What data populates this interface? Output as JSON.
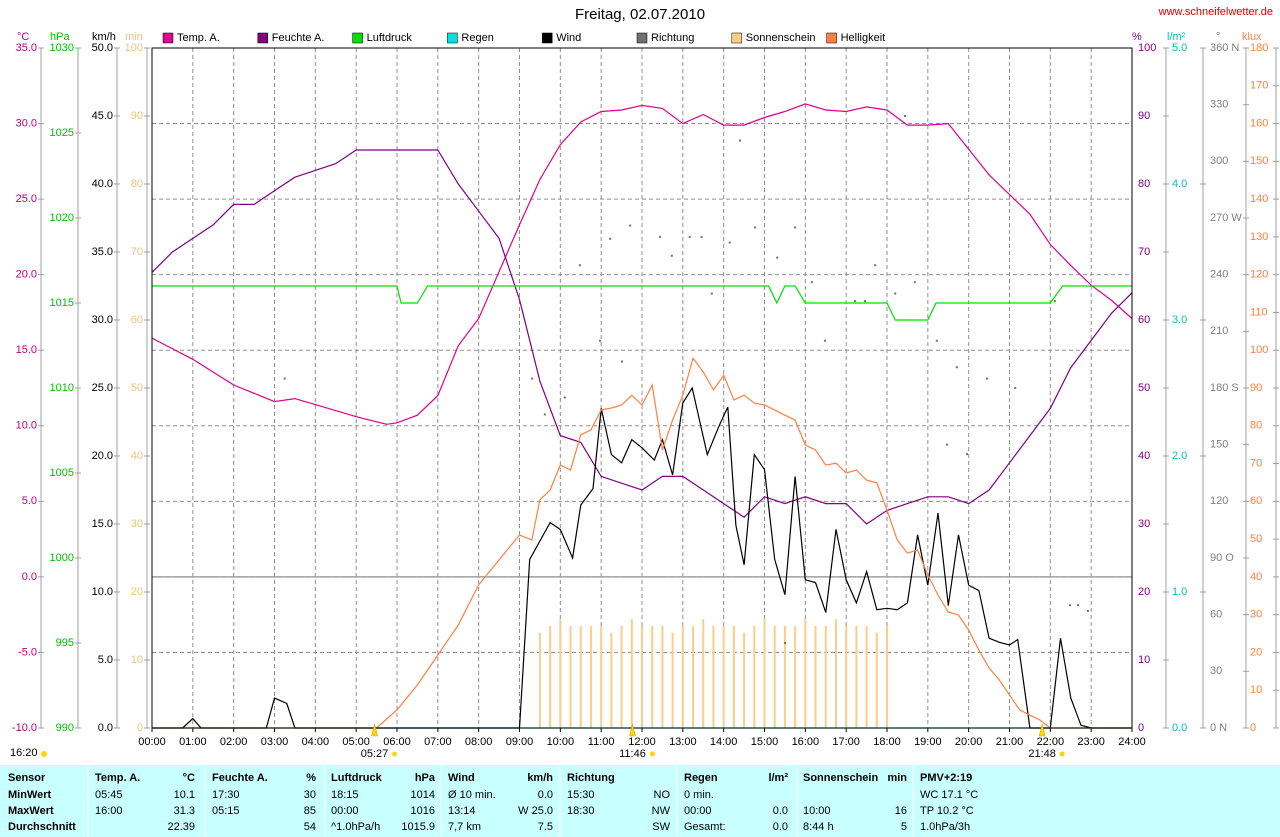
{
  "header": {
    "url": "www.schneifelwetter.de",
    "time": "16:20"
  },
  "chart_data": {
    "type": "line",
    "title": "Freitag, 02.07.2010",
    "grid": true,
    "xlim": [
      0,
      24
    ],
    "xticks": [
      {
        "value": 0,
        "label": "00:00"
      },
      {
        "value": 1,
        "label": "01:00"
      },
      {
        "value": 2,
        "label": "02:00"
      },
      {
        "value": 3,
        "label": "03:00"
      },
      {
        "value": 4,
        "label": "04:00"
      },
      {
        "value": 5,
        "label": "05:00"
      },
      {
        "value": 6,
        "label": "06:00"
      },
      {
        "value": 7,
        "label": "07:00"
      },
      {
        "value": 8,
        "label": "08:00"
      },
      {
        "value": 9,
        "label": "09:00"
      },
      {
        "value": 10,
        "label": "10:00"
      },
      {
        "value": 11,
        "label": "11:00"
      },
      {
        "value": 12,
        "label": "12:00"
      },
      {
        "value": 13,
        "label": "13:00"
      },
      {
        "value": 14,
        "label": "14:00"
      },
      {
        "value": 15,
        "label": "15:00"
      },
      {
        "value": 16,
        "label": "16:00"
      },
      {
        "value": 17,
        "label": "17:00"
      },
      {
        "value": 18,
        "label": "18:00"
      },
      {
        "value": 19,
        "label": "19:00"
      },
      {
        "value": 20,
        "label": "20:00"
      },
      {
        "value": 21,
        "label": "21:00"
      },
      {
        "value": 22,
        "label": "22:00"
      },
      {
        "value": 23,
        "label": "23:00"
      },
      {
        "value": 24,
        "label": "24:00"
      }
    ],
    "axes": [
      {
        "unit": "°C",
        "side": "left",
        "color": "#c0007f",
        "ylim": [
          -10,
          35
        ],
        "yticks": [
          {
            "value": -10,
            "label": "-10.0"
          },
          {
            "value": -5,
            "label": "-5.0"
          },
          {
            "value": 0,
            "label": "0.0"
          },
          {
            "value": 5,
            "label": "5.0"
          },
          {
            "value": 10,
            "label": "10.0"
          },
          {
            "value": 15,
            "label": "15.0"
          },
          {
            "value": 20,
            "label": "20.0"
          },
          {
            "value": 25,
            "label": "25.0"
          },
          {
            "value": 30,
            "label": "30.0"
          },
          {
            "value": 35,
            "label": "35.0"
          }
        ]
      },
      {
        "unit": "hPa",
        "side": "left",
        "color": "#00c000",
        "ylim": [
          990,
          1030
        ],
        "yticks": [
          990,
          995,
          1000,
          1005,
          1010,
          1015,
          1020,
          1025,
          1030
        ]
      },
      {
        "unit": "km/h",
        "side": "left",
        "color": "#000000",
        "ylim": [
          0,
          50
        ],
        "yticks": [
          {
            "value": 0,
            "label": "0.0"
          },
          {
            "value": 5,
            "label": "5.0"
          },
          {
            "value": 10,
            "label": "10.0"
          },
          {
            "value": 15,
            "label": "15.0"
          },
          {
            "value": 20,
            "label": "20.0"
          },
          {
            "value": 25,
            "label": "25.0"
          },
          {
            "value": 30,
            "label": "30.0"
          },
          {
            "value": 35,
            "label": "35.0"
          },
          {
            "value": 40,
            "label": "40.0"
          },
          {
            "value": 45,
            "label": "45.0"
          },
          {
            "value": 50,
            "label": "50.0"
          }
        ]
      },
      {
        "unit": "min",
        "side": "left",
        "color": "#f0c080",
        "ylim": [
          0,
          100
        ],
        "yticks": [
          0,
          10,
          20,
          30,
          40,
          50,
          60,
          70,
          80,
          90,
          100
        ]
      },
      {
        "unit": "%",
        "side": "right",
        "color": "#800080",
        "ylim": [
          0,
          100
        ],
        "yticks": [
          0,
          10,
          20,
          30,
          40,
          50,
          60,
          70,
          80,
          90,
          100
        ]
      },
      {
        "unit": "l/m²",
        "side": "right",
        "color": "#00c0c0",
        "ylim": [
          0,
          5
        ],
        "yticks": [
          {
            "value": 0,
            "label": "0.0"
          },
          {
            "value": 1,
            "label": "1.0"
          },
          {
            "value": 2,
            "label": "2.0"
          },
          {
            "value": 3,
            "label": "3.0"
          },
          {
            "value": 4,
            "label": "4.0"
          },
          {
            "value": 5,
            "label": "5.0"
          }
        ]
      },
      {
        "unit": "°",
        "side": "right",
        "color": "#808080",
        "ylim": [
          0,
          360
        ],
        "yticks": [
          {
            "value": 0,
            "label": "0   N"
          },
          30,
          60,
          {
            "value": 90,
            "label": "90   O"
          },
          120,
          150,
          {
            "value": 180,
            "label": "180 S"
          },
          210,
          240,
          {
            "value": 270,
            "label": "270 W"
          },
          300,
          330,
          {
            "value": 360,
            "label": "360 N"
          }
        ]
      },
      {
        "unit": "klux",
        "side": "right",
        "color": "#ff8040",
        "ylim": [
          0,
          180
        ],
        "yticks": [
          0,
          10,
          20,
          30,
          40,
          50,
          60,
          70,
          80,
          90,
          100,
          110,
          120,
          130,
          140,
          150,
          160,
          170,
          180
        ]
      }
    ],
    "series": [
      {
        "name": "Temp. A.",
        "type": "line",
        "axis": "°C",
        "color": "#e0008c",
        "x": [
          0,
          1,
          2,
          3,
          3.5,
          4,
          5,
          5.75,
          6,
          6.5,
          7,
          7.5,
          8,
          8.5,
          9,
          9.5,
          10,
          10.5,
          11,
          11.5,
          12,
          12.5,
          13,
          13.5,
          14,
          14.5,
          15,
          15.5,
          16,
          16.5,
          17,
          17.5,
          18,
          18.5,
          19,
          19.5,
          20,
          20.5,
          21,
          21.5,
          22,
          22.5,
          23,
          23.5,
          24
        ],
        "values": [
          15.8,
          14.4,
          12.7,
          11.6,
          11.8,
          11.4,
          10.6,
          10.1,
          10.2,
          10.7,
          12.0,
          15.3,
          17.1,
          20.2,
          23.3,
          26.3,
          28.6,
          30.1,
          30.8,
          30.9,
          31.2,
          31.0,
          30.0,
          30.6,
          29.9,
          29.9,
          30.4,
          30.8,
          31.3,
          30.9,
          30.8,
          31.1,
          30.9,
          29.9,
          29.9,
          30.0,
          28.3,
          26.6,
          25.3,
          24.0,
          22.0,
          20.6,
          19.3,
          18.3,
          17.1
        ]
      },
      {
        "name": "Feuchte A.",
        "type": "line",
        "axis": "%",
        "color": "#800080",
        "x": [
          0,
          0.5,
          1,
          1.5,
          2,
          2.5,
          3,
          3.5,
          4,
          4.5,
          5,
          6,
          7,
          7.5,
          8,
          8.5,
          9,
          9.5,
          10,
          10.5,
          11,
          11.5,
          12,
          12.5,
          13,
          13.5,
          14,
          14.5,
          15,
          15.5,
          16,
          16.5,
          17,
          17.5,
          18,
          18.5,
          19,
          19.5,
          20,
          20.5,
          21,
          21.5,
          22,
          22.5,
          23,
          23.5,
          24
        ],
        "values": [
          67,
          70,
          72,
          74,
          77,
          77,
          79,
          81,
          82,
          83,
          85,
          85,
          85,
          80,
          76,
          72,
          63,
          51,
          43,
          42,
          37,
          36,
          35,
          37,
          37,
          35,
          33,
          31,
          34,
          33,
          34,
          33,
          33,
          30,
          32,
          33,
          34,
          34,
          33,
          35,
          39,
          43,
          47,
          53,
          57,
          61,
          64
        ]
      },
      {
        "name": "Luftdruck",
        "type": "line",
        "axis": "hPa",
        "color": "#00e000",
        "x": [
          0,
          6,
          6.1,
          6.5,
          6.75,
          15.1,
          15.3,
          15.5,
          15.75,
          16,
          18,
          18.2,
          19,
          19.2,
          22,
          22.3,
          24
        ],
        "values": [
          1016,
          1016,
          1015,
          1015,
          1016,
          1016,
          1015,
          1016,
          1016,
          1015,
          1015,
          1014,
          1014,
          1015,
          1015,
          1016,
          1016
        ]
      },
      {
        "name": "Regen",
        "type": "line",
        "axis": "l/m²",
        "color": "#00e0e0",
        "x": [
          0,
          24
        ],
        "values": [
          0,
          0
        ]
      },
      {
        "name": "Wind",
        "type": "line",
        "axis": "km/h",
        "color": "#000000",
        "x": [
          0,
          0.75,
          1,
          1.2,
          2.8,
          3,
          3.3,
          3.5,
          9,
          9.25,
          9.75,
          10,
          10.3,
          10.5,
          10.8,
          11,
          11.25,
          11.5,
          11.75,
          12,
          12.3,
          12.5,
          12.75,
          13,
          13.23,
          13.6,
          13.9,
          14.1,
          14.3,
          14.5,
          14.75,
          15,
          15.25,
          15.5,
          15.75,
          16,
          16.25,
          16.5,
          16.75,
          17,
          17.25,
          17.5,
          17.75,
          18,
          18.25,
          18.5,
          18.75,
          19,
          19.25,
          19.5,
          19.75,
          20,
          20.25,
          20.5,
          20.75,
          21,
          21.2,
          21.5,
          22,
          22.25,
          22.5,
          22.75,
          23,
          24
        ],
        "values": [
          0,
          0,
          0.7,
          0,
          0,
          2.2,
          1.8,
          0,
          0,
          12.4,
          15.1,
          14.6,
          12.5,
          16.4,
          17.6,
          23.5,
          20.1,
          19.5,
          21.2,
          20.6,
          19.7,
          21.2,
          18.6,
          23.9,
          25.0,
          20.1,
          22.3,
          23.6,
          14.9,
          12.0,
          20.1,
          19.0,
          12.4,
          9.8,
          18.5,
          10.9,
          10.7,
          8.5,
          14.6,
          10.9,
          9.2,
          11.5,
          8.7,
          8.8,
          8.7,
          9.2,
          14.2,
          10.5,
          15.8,
          9.0,
          14.2,
          10.5,
          10.1,
          6.6,
          6.3,
          6.1,
          6.5,
          0,
          0,
          6.6,
          2.2,
          0.2,
          0,
          0
        ]
      },
      {
        "name": "Richtung",
        "type": "dots",
        "axis": "°",
        "color": "#707070",
        "x": [
          3.25,
          9.31,
          9.62,
          10.11,
          10.48,
          10.97,
          11.22,
          11.51,
          11.71,
          12.44,
          12.73,
          13.17,
          13.46,
          13.71,
          14.15,
          14.4,
          14.77,
          15.31,
          15.5,
          15.75,
          16.16,
          16.48,
          17.22,
          17.46,
          17.71,
          18.2,
          18.44,
          18.68,
          19.22,
          19.47,
          19.71,
          19.96,
          20.45,
          21.14,
          22.11,
          22.48,
          22.68,
          22.92
        ],
        "values": [
          185,
          185,
          166,
          175,
          245,
          205,
          259,
          194,
          266,
          260,
          250,
          260,
          260,
          230,
          257,
          311,
          265,
          249,
          45,
          265,
          236,
          205,
          226,
          226,
          245,
          230,
          324,
          236,
          205,
          150,
          191,
          145,
          185,
          180,
          226,
          65,
          65,
          62
        ]
      },
      {
        "name": "Sonnenschein",
        "type": "bar",
        "axis": "min",
        "color": "#ffcc88",
        "x": [
          9.5,
          9.75,
          10,
          10.25,
          10.5,
          10.75,
          11,
          11.25,
          11.5,
          11.75,
          12,
          12.25,
          12.5,
          12.75,
          13,
          13.25,
          13.5,
          13.75,
          14,
          14.25,
          14.5,
          14.75,
          15,
          15.25,
          15.5,
          15.75,
          16,
          16.25,
          16.5,
          16.75,
          17,
          17.25,
          17.5,
          17.75,
          18
        ],
        "values": [
          14,
          15,
          16,
          15,
          15,
          15,
          15,
          14,
          15,
          16,
          15,
          15,
          15,
          14,
          15,
          15,
          16,
          15,
          15,
          15,
          14,
          15,
          16,
          15,
          15,
          15,
          16,
          15,
          15,
          16,
          15,
          15,
          15,
          14,
          15
        ]
      },
      {
        "name": "Helligkeit",
        "type": "line",
        "axis": "klux",
        "color": "#ff8040",
        "x": [
          0,
          5.5,
          6,
          6.5,
          7,
          7.5,
          8,
          8.5,
          9,
          9.3,
          9.5,
          9.75,
          10,
          10.25,
          10.5,
          10.75,
          11,
          11.25,
          11.5,
          11.75,
          12,
          12.25,
          12.5,
          12.75,
          13,
          13.25,
          13.5,
          13.75,
          14,
          14.25,
          14.5,
          14.75,
          15,
          15.5,
          15.75,
          16,
          16.25,
          16.5,
          16.75,
          17,
          17.25,
          17.5,
          17.75,
          18,
          18.25,
          18.5,
          18.75,
          19,
          19.25,
          19.5,
          19.75,
          20,
          20.25,
          20.5,
          20.75,
          21,
          21.25,
          21.5,
          21.75,
          22,
          24
        ],
        "values": [
          0,
          0,
          4.8,
          11.4,
          19.3,
          27.3,
          37.9,
          44.5,
          51.1,
          49.8,
          60.4,
          63.0,
          69.6,
          68.3,
          77.6,
          78.9,
          84.2,
          84.7,
          85.5,
          88.1,
          85.5,
          90.8,
          73.6,
          81.5,
          88.1,
          97.9,
          94.2,
          89.5,
          93.4,
          86.8,
          88.1,
          86.0,
          85.5,
          82.8,
          81.5,
          74.9,
          73.6,
          69.6,
          70.1,
          67.5,
          68.3,
          65.6,
          64.9,
          57.7,
          49.8,
          46.3,
          47.1,
          40.5,
          35.2,
          30.7,
          29.9,
          25.9,
          20.6,
          15.9,
          12.7,
          8.7,
          4.8,
          3.4,
          2.1,
          0,
          0
        ]
      }
    ],
    "annotations": [
      {
        "label": "05:27"
      },
      {
        "label": "11:46"
      },
      {
        "label": "21:48"
      }
    ]
  },
  "stats": {
    "columns": [
      {
        "left": "Sensor"
      },
      {
        "left": "Temp. A.",
        "right": "°C"
      },
      {
        "left": "Feuchte A.",
        "right": "%"
      },
      {
        "left": "Luftdruck",
        "right": "hPa"
      },
      {
        "left": "Wind",
        "right": "km/h"
      },
      {
        "left": "Richtung"
      },
      {
        "left": "Regen",
        "right": "l/m²"
      },
      {
        "left": "Sonnenschein",
        "right": "min"
      },
      {
        "left": "PMV+2:19"
      }
    ],
    "rows": [
      [
        {
          "left": "MinWert"
        },
        {
          "left": "05:45",
          "right": "10.1"
        },
        {
          "left": "17:30",
          "right": "30"
        },
        {
          "left": "18:15",
          "right": "1014"
        },
        {
          "left": "Ø 10 min.",
          "right": "0.0"
        },
        {
          "left": "15:30",
          "right": "NO"
        },
        {
          "left": "0 min."
        },
        {},
        {
          "left": "WC 17.1 °C"
        }
      ],
      [
        {
          "left": "MaxWert"
        },
        {
          "left": "16:00",
          "right": "31.3"
        },
        {
          "left": "05:15",
          "right": "85"
        },
        {
          "left": "00:00",
          "right": "1016"
        },
        {
          "left": "13:14",
          "right": "W 25.0"
        },
        {
          "left": "18:30",
          "right": "NW"
        },
        {
          "left": "00:00",
          "right": "0.0"
        },
        {
          "left": "10:00",
          "right": "16"
        },
        {
          "left": "TP 10.2 °C"
        }
      ],
      [
        {
          "left": "Durchschnitt"
        },
        {
          "right": "22.39"
        },
        {
          "right": "54"
        },
        {
          "left": "^1.0hPa/h",
          "right": "1015.9"
        },
        {
          "left": "7,7 km",
          "right": "7.5"
        },
        {
          "right": "SW"
        },
        {
          "left": "Gesamt:",
          "right": "0.0"
        },
        {
          "left": "8:44 h",
          "right": "5"
        },
        {
          "left": "1.0hPa/3h"
        }
      ]
    ]
  }
}
